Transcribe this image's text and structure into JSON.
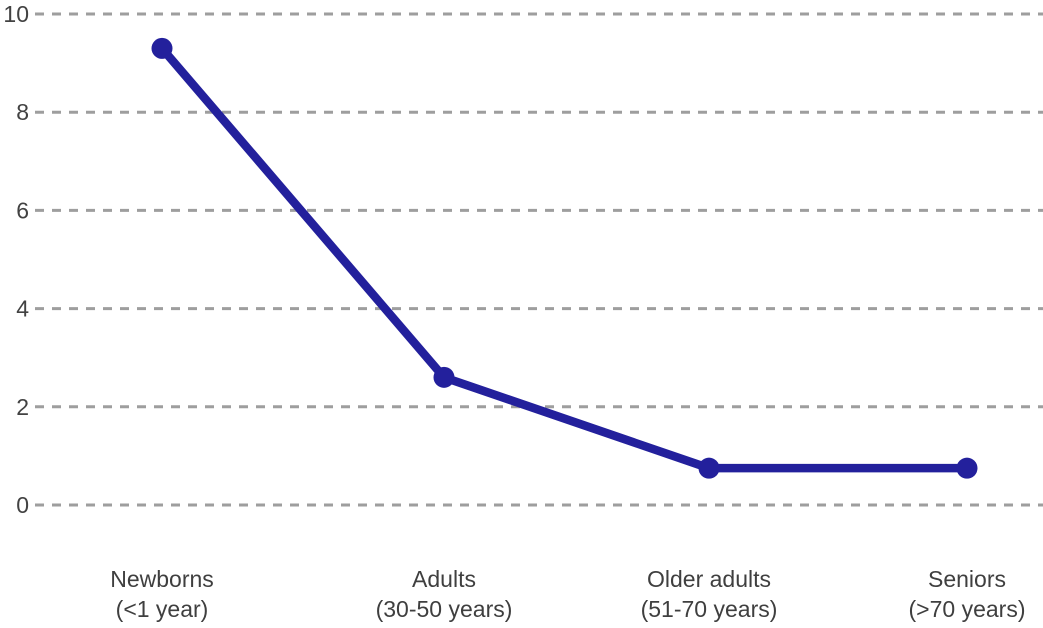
{
  "page": {
    "background_color": "#ffffff"
  },
  "chart_data": {
    "type": "line",
    "title": "",
    "xlabel": "",
    "ylabel": "",
    "categories": [
      "Newborns (<1 year)",
      "Adults (30-50 years)",
      "Older adults (51-70 years)",
      "Seniors (>70 years)"
    ],
    "category_lines": [
      [
        "Newborns",
        "(<1 year)"
      ],
      [
        "Adults",
        "(30-50 years)"
      ],
      [
        "Older adults",
        "(51-70 years)"
      ],
      [
        "Seniors",
        "(>70 years)"
      ]
    ],
    "series": [
      {
        "name": "value",
        "values": [
          9.3,
          2.6,
          0.75,
          0.75
        ]
      }
    ],
    "ylim": [
      0,
      10
    ],
    "yticks": [
      "0",
      "2",
      "4",
      "6",
      "8",
      "10"
    ],
    "grid": "horizontal-dashed",
    "legend_position": "none",
    "marker": "circle",
    "colors": {
      "line": "#23209C",
      "marker": "#23209C",
      "gridline": "#9e9e9e",
      "tick_text": "#424242",
      "category_text": "#3f3f3f"
    }
  }
}
